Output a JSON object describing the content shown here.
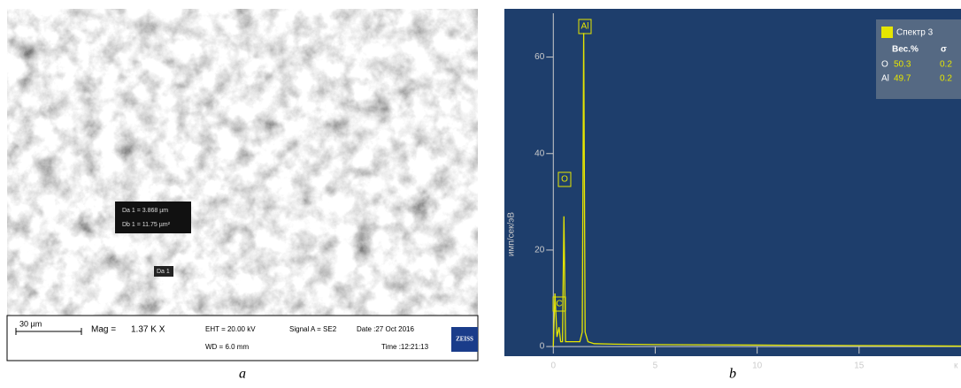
{
  "sem_image": {
    "measure_lines": [
      "Da 1 = 3.868 µm",
      "Db 1 = 11.75 µm²"
    ],
    "marker": "Da 1",
    "info_bar": {
      "scale": "30 µm",
      "mag_label": "Mag = ",
      "mag_value": "1.37 K X",
      "eht": "EHT = 20.00 kV",
      "wd": "WD = 6.0 mm",
      "signal": "Signal A = SE2",
      "date": "Date :27 Oct 2016",
      "time": "Time :12:21:13",
      "logo": "ZEISS"
    }
  },
  "chart_data": {
    "type": "line",
    "y_label": "имп/сек/эВ",
    "x_label": "к",
    "series": [
      {
        "name": "Спектр 3",
        "color": "#e6e600",
        "x": [
          0,
          0.08,
          0.18,
          0.28,
          0.36,
          0.45,
          0.52,
          0.6,
          0.8,
          1.0,
          1.3,
          1.42,
          1.49,
          1.56,
          1.7,
          2.0,
          3,
          5,
          10,
          15,
          20
        ],
        "values": [
          0,
          11,
          2,
          4,
          1,
          1,
          27,
          1,
          1,
          1,
          1,
          3,
          65,
          3,
          1,
          0.6,
          0.5,
          0.4,
          0.3,
          0.2,
          0.1
        ]
      }
    ],
    "peak_labels": [
      "C",
      "O",
      "Al"
    ],
    "xlim": [
      -2.4,
      20
    ],
    "xticks": [
      0,
      5,
      10,
      15
    ],
    "ylim": [
      -2,
      70
    ],
    "yticks": [
      0,
      20,
      40,
      60
    ],
    "legend_table": {
      "header": [
        "Вес.%",
        "σ"
      ],
      "rows": [
        [
          "O",
          "50.3",
          "0.2"
        ],
        [
          "Al",
          "49.7",
          "0.2"
        ]
      ]
    }
  },
  "captions": [
    "a",
    "b"
  ]
}
